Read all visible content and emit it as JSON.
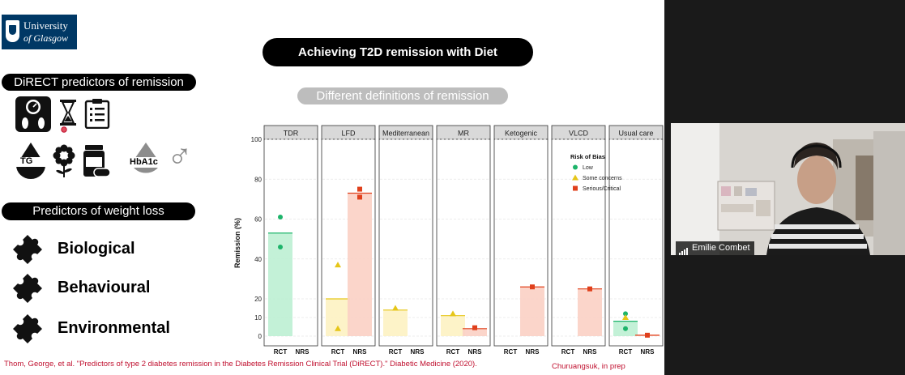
{
  "logo": {
    "line1": "University",
    "line2": "of Glasgow"
  },
  "slide": {
    "title": "Achieving T2D remission with Diet",
    "subtitle": "Different definitions of remission",
    "direct_heading": "DiRECT predictors of remission",
    "tg_label": "TG",
    "hba1c_label": "HbA1c",
    "gender_symbol": "♂",
    "weight_heading": "Predictors of weight loss",
    "factors": [
      "Biological",
      "Behavioural",
      "Environmental"
    ],
    "citation_left": "Thom, George, et al. \"Predictors of type 2 diabetes remission in the Diabetes Remission Clinical Trial (DiRECT).\" Diabetic Medicine (2020).",
    "citation_right": "Churuangsuk, in prep",
    "icons": [
      "scale-feet-icon",
      "hourglass-icon",
      "clipboard-icon",
      "drop-icon",
      "flower-icon",
      "pill-bottle-icon",
      "drop-icon",
      "male-symbol-icon",
      "puzzle-icon"
    ]
  },
  "chart_data": {
    "type": "scatter",
    "ylabel": "Remission (%)",
    "ylim": [
      0,
      100
    ],
    "yticks": [
      0,
      10,
      20,
      40,
      60,
      80,
      100
    ],
    "facets": [
      "TDR",
      "LFD",
      "Mediterranean",
      "MR",
      "Ketogenic",
      "VLCD",
      "Usual care"
    ],
    "categories": [
      "RCT",
      "NRS"
    ],
    "legend": {
      "title": "Risk of Bias",
      "entries": [
        {
          "name": "Low",
          "shape": "circle",
          "color": "#1db46a"
        },
        {
          "name": "Some concerns",
          "shape": "triangle",
          "color": "#e6c619"
        },
        {
          "name": "Serious/Critical",
          "shape": "square",
          "color": "#e0401c"
        }
      ],
      "placement": "top-right"
    },
    "bar_colors": {
      "Low": "#bdf0d3",
      "Some concerns": "#fdf2c2",
      "Serious/Critical": "#fbd0c4"
    },
    "bars": [
      {
        "facet": "TDR",
        "category": "RCT",
        "value": 53,
        "bias": "Low"
      },
      {
        "facet": "LFD",
        "category": "RCT",
        "value": 20,
        "bias": "Some concerns"
      },
      {
        "facet": "LFD",
        "category": "NRS",
        "value": 73,
        "bias": "Serious/Critical"
      },
      {
        "facet": "Mediterranean",
        "category": "RCT",
        "value": 14,
        "bias": "Some concerns"
      },
      {
        "facet": "MR",
        "category": "RCT",
        "value": 11,
        "bias": "Some concerns"
      },
      {
        "facet": "MR",
        "category": "NRS",
        "value": 4,
        "bias": "Serious/Critical"
      },
      {
        "facet": "Ketogenic",
        "category": "NRS",
        "value": 26,
        "bias": "Serious/Critical"
      },
      {
        "facet": "VLCD",
        "category": "NRS",
        "value": 25,
        "bias": "Serious/Critical"
      },
      {
        "facet": "Usual care",
        "category": "RCT",
        "value": 8,
        "bias": "Low"
      },
      {
        "facet": "Usual care",
        "category": "NRS",
        "value": 0.5,
        "bias": "Serious/Critical"
      }
    ],
    "points": [
      {
        "facet": "TDR",
        "category": "RCT",
        "value": 61,
        "bias": "Low"
      },
      {
        "facet": "TDR",
        "category": "RCT",
        "value": 46,
        "bias": "Low"
      },
      {
        "facet": "LFD",
        "category": "RCT",
        "value": 37,
        "bias": "Some concerns"
      },
      {
        "facet": "LFD",
        "category": "RCT",
        "value": 4,
        "bias": "Some concerns"
      },
      {
        "facet": "LFD",
        "category": "NRS",
        "value": 75,
        "bias": "Serious/Critical"
      },
      {
        "facet": "LFD",
        "category": "NRS",
        "value": 71,
        "bias": "Serious/Critical"
      },
      {
        "facet": "Mediterranean",
        "category": "RCT",
        "value": 15,
        "bias": "Some concerns"
      },
      {
        "facet": "MR",
        "category": "RCT",
        "value": 12,
        "bias": "Some concerns"
      },
      {
        "facet": "MR",
        "category": "NRS",
        "value": 4.5,
        "bias": "Serious/Critical"
      },
      {
        "facet": "Ketogenic",
        "category": "NRS",
        "value": 26,
        "bias": "Serious/Critical"
      },
      {
        "facet": "VLCD",
        "category": "NRS",
        "value": 25,
        "bias": "Serious/Critical"
      },
      {
        "facet": "Usual care",
        "category": "RCT",
        "value": 12,
        "bias": "Low"
      },
      {
        "facet": "Usual care",
        "category": "RCT",
        "value": 10,
        "bias": "Some concerns"
      },
      {
        "facet": "Usual care",
        "category": "RCT",
        "value": 4,
        "bias": "Low"
      },
      {
        "facet": "Usual care",
        "category": "NRS",
        "value": 0.5,
        "bias": "Serious/Critical"
      }
    ],
    "grid": true
  },
  "participant": {
    "name": "Emilie Combet",
    "status_icon": "signal-bars-icon"
  }
}
